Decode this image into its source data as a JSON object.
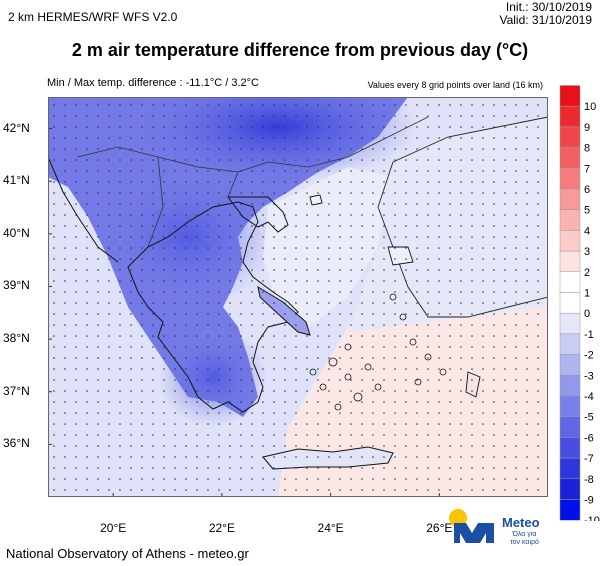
{
  "header": {
    "model": "2 km HERMES/WRF WFS V2.0",
    "init": "Init.: 30/10/2019",
    "valid": "Valid: 31/10/2019"
  },
  "title": "2 m air temperature difference from previous day (°C)",
  "subtitle_left": "Min / Max temp. difference : -11.1°C / 3.2°C",
  "subtitle_right": "Values every 8 grid points over land (16 km)",
  "map": {
    "lon_ticks": [
      "20°E",
      "22°E",
      "24°E",
      "26°E"
    ],
    "lat_ticks": [
      "42°N",
      "41°N",
      "40°N",
      "39°N",
      "38°N",
      "37°N",
      "36°N"
    ],
    "extent": {
      "lon": [
        18.8,
        28.0
      ],
      "lat": [
        35.0,
        42.6
      ]
    }
  },
  "colorbar": {
    "labels": [
      "10",
      "9",
      "8",
      "7",
      "6",
      "5",
      "4",
      "3",
      "2",
      "1",
      "0",
      "-1",
      "-2",
      "-3",
      "-4",
      "-5",
      "-6",
      "-7",
      "-8",
      "-9",
      "-10"
    ],
    "colors": [
      "#e8101a",
      "#ec2a2e",
      "#f0464a",
      "#f36063",
      "#f57d7e",
      "#f89a9b",
      "#fab3b3",
      "#fccaca",
      "#fde2e2",
      "#ffffff",
      "#ffffff",
      "#e4e6fa",
      "#c9cdf6",
      "#aeb3f1",
      "#9299ed",
      "#7a80e9",
      "#6067e5",
      "#464de0",
      "#2f36dc",
      "#1a21d6",
      "#0010e6"
    ]
  },
  "logo": {
    "name": "Meteo",
    "tagline_1": "Όλα για",
    "tagline_2": "τον καιρό",
    "colors": {
      "blue": "#1a4fa3",
      "yellow": "#f7c600"
    }
  },
  "credit": "National Observatory of Athens - meteo.gr"
}
